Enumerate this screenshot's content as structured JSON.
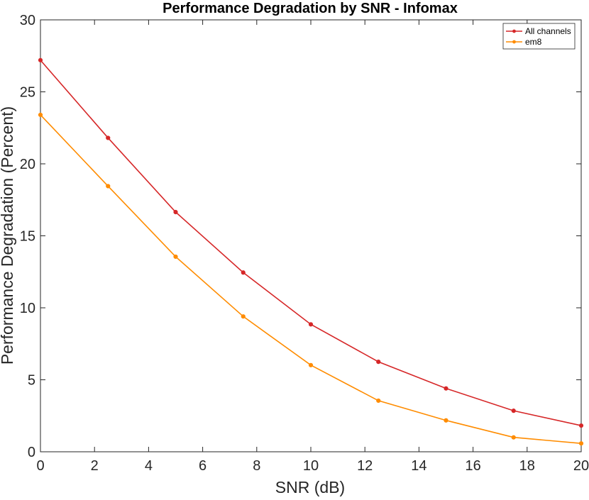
{
  "chart_data": {
    "type": "line",
    "title": "Performance Degradation by SNR - Infomax",
    "xlabel": "SNR (dB)",
    "ylabel": "Performance Degradation (Percent)",
    "xlim": [
      0,
      20
    ],
    "ylim": [
      0,
      30
    ],
    "xticks": [
      0,
      2,
      4,
      6,
      8,
      10,
      12,
      14,
      16,
      18,
      20
    ],
    "yticks": [
      0,
      5,
      10,
      15,
      20,
      25,
      30
    ],
    "grid": false,
    "legend_position": "top-right",
    "x": [
      0,
      2.5,
      5,
      7.5,
      10,
      12.5,
      15,
      17.5,
      20
    ],
    "series": [
      {
        "name": "All channels",
        "color": "#d62728",
        "values": [
          27.2,
          21.8,
          16.65,
          12.45,
          8.85,
          6.25,
          4.4,
          2.85,
          1.82
        ]
      },
      {
        "name": "em8",
        "color": "#ff8c00",
        "values": [
          23.4,
          18.45,
          13.55,
          9.4,
          6.02,
          3.55,
          2.18,
          1.0,
          0.58
        ]
      }
    ]
  }
}
